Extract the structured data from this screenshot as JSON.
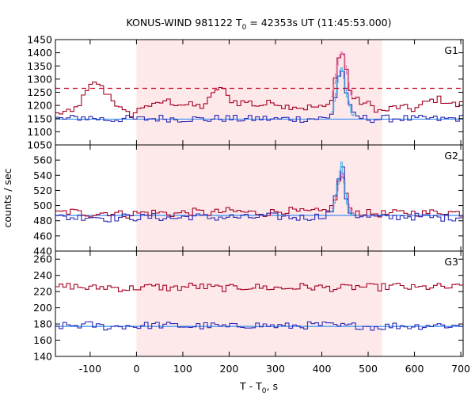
{
  "chart_data": {
    "type": "line",
    "title": "KONUS-WIND 981122 T",
    "title_sub": "0",
    "title_rest": " = 42353s UT (11:45:53.000)",
    "xlabel": "T - T",
    "xlabel_sub": "0",
    "xlabel_rest": ", s",
    "ylabel": "counts / sec",
    "xlim": [
      -175,
      705
    ],
    "xticks": [
      -100,
      0,
      100,
      200,
      300,
      400,
      500,
      600,
      700
    ],
    "xtick_labels": [
      "-100",
      "0",
      "100",
      "200",
      "300",
      "400",
      "500",
      "600",
      "700"
    ],
    "shaded_interval": [
      0,
      530
    ],
    "colors": {
      "background_series": "#a50021",
      "burst_series": "#2b2bb8",
      "highres_background": "#e878b8",
      "highres_burst": "#44b8e8",
      "fit_line": "#3b8ef0",
      "threshold": "#c00020",
      "shade": "#fde8ea"
    },
    "panels": [
      {
        "label": "G1",
        "ylim": [
          1050,
          1450
        ],
        "yticks": [
          1050,
          1100,
          1150,
          1200,
          1250,
          1300,
          1350,
          1400,
          1450
        ],
        "ytick_labels": [
          "1050",
          "1100",
          "1150",
          "1200",
          "1250",
          "1300",
          "1350",
          "1400",
          "1450"
        ],
        "threshold": 1265,
        "fit_level": 1148,
        "series": [
          {
            "key": "bg",
            "x": [
              -175,
              -160,
              -140,
              -120,
              -100,
              -85,
              -70,
              -55,
              -45,
              -30,
              -15,
              0,
              20,
              40,
              60,
              80,
              100,
              120,
              140,
              160,
              175,
              185,
              200,
              220,
              240,
              260,
              280,
              300,
              320,
              340,
              360,
              380,
              400,
              415,
              425,
              435,
              442,
              448,
              455,
              465,
              480,
              500,
              530,
              560,
              600,
              630,
              650,
              670,
              690,
              705
            ],
            "y": [
              1165,
              1175,
              1170,
              1215,
              1270,
              1290,
              1255,
              1235,
              1210,
              1175,
              1165,
              1175,
              1205,
              1195,
              1220,
              1210,
              1205,
              1200,
              1195,
              1225,
              1270,
              1265,
              1225,
              1210,
              1215,
              1200,
              1205,
              1215,
              1195,
              1200,
              1190,
              1195,
              1190,
              1200,
              1255,
              1375,
              1400,
              1390,
              1310,
              1230,
              1215,
              1205,
              1175,
              1195,
              1185,
              1215,
              1225,
              1215,
              1200,
              1205
            ]
          },
          {
            "key": "src",
            "x": [
              -175,
              -150,
              -120,
              -90,
              -60,
              -30,
              0,
              30,
              60,
              90,
              120,
              150,
              180,
              210,
              240,
              270,
              300,
              330,
              360,
              390,
              415,
              425,
              435,
              442,
              448,
              455,
              465,
              480,
              510,
              540,
              570,
              600,
              630,
              660,
              690,
              705
            ],
            "y": [
              1150,
              1148,
              1155,
              1152,
              1145,
              1150,
              1147,
              1150,
              1152,
              1148,
              1150,
              1146,
              1152,
              1149,
              1148,
              1151,
              1147,
              1150,
              1149,
              1151,
              1150,
              1185,
              1300,
              1345,
              1310,
              1230,
              1165,
              1155,
              1148,
              1150,
              1152,
              1148,
              1150,
              1147,
              1152,
              1150
            ]
          }
        ]
      },
      {
        "label": "G2",
        "ylim": [
          440,
          580
        ],
        "yticks": [
          440,
          460,
          480,
          500,
          520,
          540,
          560
        ],
        "ytick_labels": [
          "440",
          "460",
          "480",
          "500",
          "520",
          "540",
          "560"
        ],
        "fit_level": 487,
        "series": [
          {
            "key": "bg",
            "x": [
              -175,
              -140,
              -100,
              -60,
              -20,
              0,
              40,
              80,
              120,
              160,
              200,
              240,
              280,
              320,
              360,
              400,
              425,
              435,
              442,
              448,
              455,
              465,
              500,
              540,
              580,
              620,
              660,
              705
            ],
            "y": [
              490,
              492,
              489,
              491,
              488,
              490,
              491,
              489,
              492,
              490,
              493,
              491,
              490,
              494,
              491,
              492,
              498,
              525,
              545,
              530,
              505,
              492,
              490,
              489,
              491,
              490,
              492,
              490
            ]
          },
          {
            "key": "src",
            "x": [
              -175,
              -140,
              -100,
              -60,
              -20,
              0,
              40,
              80,
              120,
              160,
              200,
              240,
              280,
              320,
              360,
              400,
              425,
              435,
              442,
              448,
              455,
              465,
              500,
              540,
              580,
              620,
              660,
              705
            ],
            "y": [
              485,
              484,
              486,
              483,
              485,
              484,
              485,
              483,
              486,
              484,
              485,
              484,
              486,
              485,
              484,
              486,
              495,
              530,
              558,
              535,
              500,
              488,
              485,
              484,
              486,
              485,
              484,
              485
            ]
          }
        ]
      },
      {
        "label": "G3",
        "ylim": [
          140,
          270
        ],
        "yticks": [
          140,
          160,
          180,
          200,
          220,
          240,
          260
        ],
        "ytick_labels": [
          "140",
          "160",
          "180",
          "200",
          "220",
          "240",
          "260"
        ],
        "fit_level": 177,
        "series": [
          {
            "key": "bg",
            "x": [
              -175,
              -140,
              -100,
              -60,
              -20,
              0,
              40,
              80,
              120,
              160,
              200,
              240,
              280,
              320,
              360,
              400,
              440,
              480,
              520,
              560,
              600,
              640,
              680,
              705
            ],
            "y": [
              225,
              227,
              224,
              226,
              223,
              225,
              226,
              224,
              227,
              225,
              224,
              226,
              225,
              224,
              226,
              225,
              224,
              226,
              225,
              227,
              224,
              226,
              225,
              226
            ]
          },
          {
            "key": "src",
            "x": [
              -175,
              -140,
              -100,
              -60,
              -20,
              0,
              40,
              80,
              120,
              160,
              200,
              240,
              280,
              320,
              360,
              400,
              440,
              480,
              520,
              560,
              600,
              640,
              680,
              705
            ],
            "y": [
              177,
              178,
              179,
              176,
              178,
              177,
              179,
              178,
              177,
              178,
              176,
              179,
              178,
              177,
              178,
              179,
              177,
              178,
              176,
              178,
              177,
              179,
              178,
              177
            ]
          }
        ]
      }
    ]
  }
}
